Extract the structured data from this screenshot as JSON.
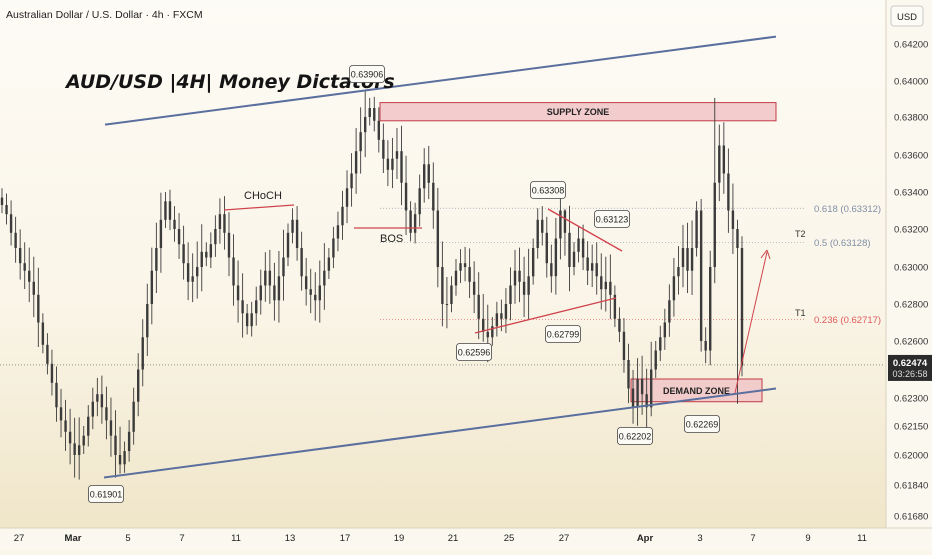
{
  "header": {
    "symbol_line": "Australian Dollar / U.S. Dollar · 4h · FXCM",
    "currency_button": "USD"
  },
  "watermark": "AUD/USD |4H| Money Dictators",
  "colors": {
    "background": "#faf6ea",
    "candle": "#3b3b3b",
    "channel": "#5a6f9e",
    "zone_fill": "#f1c5c8",
    "zone_stroke": "#c23a45",
    "annotation_red": "#d0434c",
    "fib_orange": "#e05a5a",
    "fib_gray": "#7f8fa6",
    "price_tag": "#2b2b2b"
  },
  "chart_data": {
    "type": "candlestick",
    "title": "AUD/USD |4H| Money Dictators",
    "instrument": "Australian Dollar / U.S. Dollar",
    "timeframe": "4h",
    "source": "FXCM",
    "ylim": [
      0.6159,
      0.6431
    ],
    "y_ticks": [
      "0.64200",
      "0.64000",
      "0.63800",
      "0.63600",
      "0.63400",
      "0.63200",
      "0.63000",
      "0.62800",
      "0.62600",
      "0.62300",
      "0.62150",
      "0.62000",
      "0.61840",
      "0.61680"
    ],
    "x_ticks": [
      "27",
      "Mar",
      "5",
      "7",
      "11",
      "13",
      "17",
      "19",
      "21",
      "25",
      "27",
      "Apr",
      "3",
      "7",
      "9",
      "11"
    ],
    "x_ticks_bold": [
      "Mar",
      "Apr"
    ],
    "current_price": "0.62474",
    "countdown": "03:26:58",
    "closes": [
      0.6333,
      0.6328,
      0.6318,
      0.631,
      0.6302,
      0.6298,
      0.6292,
      0.6285,
      0.627,
      0.6258,
      0.6248,
      0.6238,
      0.6225,
      0.6218,
      0.6212,
      0.6206,
      0.62,
      0.6205,
      0.621,
      0.622,
      0.6228,
      0.6232,
      0.6225,
      0.6218,
      0.621,
      0.62,
      0.6195,
      0.6202,
      0.6212,
      0.6228,
      0.6245,
      0.6262,
      0.628,
      0.6298,
      0.631,
      0.6325,
      0.6335,
      0.6325,
      0.632,
      0.6312,
      0.6302,
      0.6292,
      0.6295,
      0.63,
      0.6308,
      0.6305,
      0.6312,
      0.632,
      0.6328,
      0.6318,
      0.6305,
      0.629,
      0.6282,
      0.6275,
      0.6268,
      0.6275,
      0.6282,
      0.629,
      0.6298,
      0.629,
      0.6282,
      0.6295,
      0.6305,
      0.6318,
      0.6325,
      0.631,
      0.6295,
      0.6288,
      0.6285,
      0.6282,
      0.629,
      0.6298,
      0.6305,
      0.6315,
      0.6322,
      0.6332,
      0.6342,
      0.635,
      0.6362,
      0.6372,
      0.638,
      0.6385,
      0.6378,
      0.6368,
      0.6358,
      0.6352,
      0.6358,
      0.6362,
      0.6345,
      0.633,
      0.6318,
      0.6328,
      0.6342,
      0.6355,
      0.6345,
      0.633,
      0.63,
      0.628,
      0.628,
      0.629,
      0.6298,
      0.6302,
      0.63,
      0.6292,
      0.6285,
      0.6272,
      0.6265,
      0.6262,
      0.6268,
      0.6275,
      0.6272,
      0.628,
      0.629,
      0.6298,
      0.6292,
      0.6285,
      0.6295,
      0.631,
      0.6325,
      0.6318,
      0.6302,
      0.6295,
      0.6315,
      0.633,
      0.6318,
      0.63,
      0.6308,
      0.6315,
      0.6305,
      0.6298,
      0.6302,
      0.6295,
      0.6288,
      0.6292,
      0.6285,
      0.6272,
      0.6265,
      0.625,
      0.6235,
      0.6225,
      0.624,
      0.6232,
      0.6225,
      0.6245,
      0.6255,
      0.6262,
      0.627,
      0.6282,
      0.6295,
      0.63,
      0.631,
      0.6298,
      0.631,
      0.633,
      0.626,
      0.6255,
      0.63,
      0.6345,
      0.6365,
      0.635,
      0.633,
      0.632,
      0.631,
      0.6247
    ],
    "zones": [
      {
        "label": "SUPPLY ZONE",
        "from": 0.6378,
        "to": 0.6388
      },
      {
        "label": "DEMAND ZONE",
        "from": 0.6228,
        "to": 0.624
      }
    ],
    "channel_lines": [
      {
        "name": "upper",
        "from": [
          0.6376
        ],
        "to": [
          0.6424
        ]
      },
      {
        "name": "lower",
        "from": [
          0.6188
        ],
        "to": [
          0.6235
        ]
      }
    ],
    "price_labels": [
      "0.63906",
      "0.63308",
      "0.63123",
      "0.62596",
      "0.62799",
      "0.62202",
      "0.62269",
      "0.61901"
    ],
    "annotations": [
      "CHoCH",
      "BOS"
    ],
    "fib_levels": [
      {
        "label": "0.618 (0.63312)",
        "value": 0.63312,
        "style": "gray"
      },
      {
        "label": "0.5 (0.63128)",
        "value": 0.63128,
        "style": "gray"
      },
      {
        "label": "0.236 (0.62717)",
        "value": 0.62717,
        "style": "red"
      }
    ],
    "targets": [
      "T2",
      "T1"
    ]
  }
}
